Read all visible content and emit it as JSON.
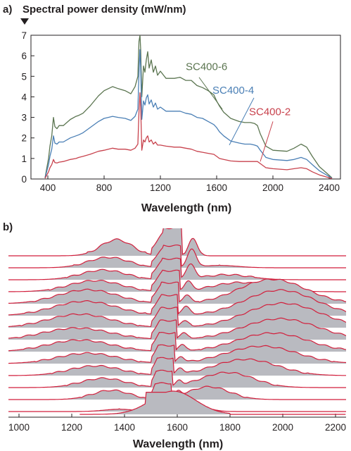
{
  "chart_data": [
    {
      "panel": "a)",
      "type": "line",
      "title": "Spectral power density (mW/nm)",
      "xlabel": "Wavelength (nm)",
      "ylabel": "",
      "xlim": [
        280,
        2480
      ],
      "ylim": [
        0,
        7
      ],
      "xticks": [
        400,
        800,
        1200,
        1600,
        2000,
        2400
      ],
      "yticks": [
        0,
        1,
        2,
        3,
        4,
        5,
        6,
        7
      ],
      "grid": false,
      "series": [
        {
          "name": "SC400-6",
          "color": "#5b7550",
          "label_at": [
            1380,
            5.3
          ],
          "pointer": [
            [
              1475,
              4.95
            ],
            [
              1640,
              3.4
            ]
          ],
          "x": [
            380,
            405,
            415,
            428,
            440,
            450,
            465,
            480,
            510,
            560,
            600,
            620,
            650,
            700,
            760,
            800,
            830,
            860,
            900,
            950,
            990,
            1020,
            1040,
            1048,
            1055,
            1060,
            1068,
            1080,
            1090,
            1100,
            1110,
            1120,
            1135,
            1150,
            1165,
            1180,
            1200,
            1240,
            1300,
            1340,
            1380,
            1420,
            1460,
            1500,
            1540,
            1580,
            1600,
            1620,
            1650,
            1700,
            1760,
            1800,
            1840,
            1870,
            1890,
            1910,
            1950,
            2000,
            2100,
            2150,
            2200,
            2240,
            2280,
            2330,
            2380,
            2420
          ],
          "y": [
            0.05,
            1.0,
            1.6,
            2.1,
            3.0,
            2.55,
            2.45,
            2.6,
            2.6,
            2.9,
            3.05,
            3.1,
            3.2,
            3.55,
            4.05,
            4.3,
            4.4,
            4.5,
            4.4,
            4.3,
            4.15,
            4.5,
            5.0,
            6.7,
            7.0,
            6.3,
            4.0,
            5.5,
            5.2,
            5.8,
            6.2,
            5.4,
            5.8,
            5.2,
            5.5,
            5.05,
            5.25,
            4.9,
            4.9,
            4.95,
            4.8,
            4.8,
            4.55,
            4.45,
            4.3,
            4.1,
            3.8,
            3.55,
            3.25,
            2.95,
            2.8,
            2.75,
            2.75,
            2.7,
            2.6,
            2.2,
            1.6,
            1.4,
            1.35,
            1.5,
            1.7,
            1.55,
            1.1,
            0.6,
            0.3,
            0.05
          ]
        },
        {
          "name": "SC400-4",
          "color": "#4a7fb5",
          "label_at": [
            1570,
            4.15
          ],
          "pointer": [
            [
              1865,
              3.95
            ],
            [
              1690,
              1.65
            ]
          ],
          "x": [
            380,
            405,
            415,
            428,
            440,
            450,
            465,
            480,
            510,
            560,
            600,
            620,
            650,
            700,
            760,
            800,
            830,
            860,
            900,
            950,
            990,
            1020,
            1040,
            1048,
            1055,
            1060,
            1068,
            1080,
            1090,
            1100,
            1110,
            1120,
            1135,
            1150,
            1165,
            1180,
            1200,
            1240,
            1300,
            1340,
            1380,
            1420,
            1460,
            1500,
            1540,
            1580,
            1600,
            1620,
            1650,
            1700,
            1760,
            1800,
            1840,
            1870,
            1890,
            1910,
            1950,
            2000,
            2100,
            2150,
            2200,
            2240,
            2280,
            2330,
            2380,
            2420
          ],
          "y": [
            0.05,
            0.7,
            1.1,
            1.45,
            2.1,
            1.75,
            1.7,
            1.8,
            1.8,
            2.0,
            2.1,
            2.15,
            2.25,
            2.5,
            2.8,
            2.95,
            3.0,
            3.05,
            3.0,
            2.95,
            2.85,
            3.05,
            3.4,
            5.2,
            6.3,
            5.4,
            2.9,
            3.8,
            3.6,
            3.95,
            4.1,
            3.65,
            3.85,
            3.5,
            3.7,
            3.4,
            3.5,
            3.3,
            3.3,
            3.3,
            3.2,
            3.15,
            3.0,
            2.95,
            2.8,
            2.65,
            2.5,
            2.3,
            2.1,
            1.85,
            1.75,
            1.7,
            1.7,
            1.65,
            1.6,
            1.4,
            1.05,
            0.95,
            0.9,
            0.95,
            1.05,
            0.95,
            0.7,
            0.4,
            0.2,
            0.03
          ]
        },
        {
          "name": "SC400-2",
          "color": "#c8424d",
          "label_at": [
            1830,
            3.1
          ],
          "pointer": [
            [
              2000,
              2.8
            ],
            [
              1910,
              0.85
            ]
          ],
          "x": [
            380,
            405,
            415,
            428,
            440,
            450,
            465,
            480,
            510,
            560,
            600,
            620,
            650,
            700,
            760,
            800,
            830,
            860,
            900,
            950,
            990,
            1020,
            1040,
            1048,
            1055,
            1060,
            1068,
            1080,
            1090,
            1100,
            1110,
            1120,
            1135,
            1150,
            1165,
            1180,
            1200,
            1240,
            1300,
            1340,
            1380,
            1420,
            1460,
            1500,
            1540,
            1580,
            1600,
            1620,
            1650,
            1700,
            1760,
            1800,
            1840,
            1870,
            1890,
            1910,
            1950,
            2000,
            2100,
            2150,
            2200,
            2240,
            2280,
            2330,
            2380,
            2420
          ],
          "y": [
            0.03,
            0.35,
            0.55,
            0.7,
            0.95,
            0.8,
            0.78,
            0.82,
            0.85,
            0.95,
            1.0,
            1.05,
            1.1,
            1.2,
            1.35,
            1.4,
            1.45,
            1.5,
            1.45,
            1.45,
            1.4,
            1.5,
            1.7,
            3.3,
            4.2,
            3.5,
            1.4,
            1.9,
            1.8,
            2.0,
            2.1,
            1.8,
            1.9,
            1.7,
            1.8,
            1.65,
            1.65,
            1.6,
            1.55,
            1.55,
            1.5,
            1.45,
            1.35,
            1.3,
            1.25,
            1.2,
            1.1,
            1.0,
            0.95,
            0.88,
            0.85,
            0.85,
            0.85,
            0.85,
            0.85,
            0.75,
            0.55,
            0.5,
            0.45,
            0.5,
            0.55,
            0.5,
            0.35,
            0.2,
            0.1,
            0.02
          ]
        }
      ]
    },
    {
      "panel": "b)",
      "type": "area",
      "title": "",
      "xlabel": "Wavelength (nm)",
      "ylabel": "",
      "xlim": [
        960,
        2240
      ],
      "xticks": [
        1000,
        1200,
        1400,
        1600,
        1800,
        2000,
        2200
      ],
      "grid": false,
      "fill_color": "#b9bac0",
      "line_color": "#d21f3c",
      "traces": [
        {
          "left_bump": [
            1370,
            85,
            0.58
          ],
          "right_bump": [
            1740,
            90,
            0.0
          ],
          "band": [
            1547,
            1617,
            1.0
          ],
          "ridge": [
            1660,
            25,
            0.6
          ]
        },
        {
          "left_bump": [
            1340,
            110,
            0.45
          ],
          "right_bump": [
            1760,
            100,
            0.1
          ],
          "band": [
            1545,
            1614,
            0.95
          ],
          "ridge": [
            1655,
            25,
            0.75
          ]
        },
        {
          "left_bump": [
            1320,
            120,
            0.42
          ],
          "right_bump": [
            1790,
            120,
            0.22
          ],
          "band": [
            1543,
            1612,
            0.9
          ],
          "ridge": [
            1650,
            25,
            0.6
          ]
        },
        {
          "left_bump": [
            1290,
            140,
            0.48
          ],
          "right_bump": [
            1840,
            150,
            0.4
          ],
          "band": [
            1541,
            1610,
            0.9
          ],
          "ridge": [
            1640,
            20,
            0.4
          ]
        },
        {
          "left_bump": [
            1260,
            160,
            0.6
          ],
          "right_bump": [
            1960,
            180,
            1.05
          ],
          "band": [
            1540,
            1606,
            0.9
          ],
          "ridge": [
            1635,
            20,
            0.35
          ]
        },
        {
          "left_bump": [
            1250,
            170,
            0.62
          ],
          "right_bump": [
            1990,
            190,
            1.1
          ],
          "band": [
            1538,
            1603,
            0.88
          ],
          "ridge": [
            1632,
            20,
            0.4
          ]
        },
        {
          "left_bump": [
            1230,
            170,
            0.58
          ],
          "right_bump": [
            2000,
            200,
            1.05
          ],
          "band": [
            1537,
            1600,
            0.85
          ],
          "ridge": [
            1628,
            20,
            0.3
          ]
        },
        {
          "left_bump": [
            1220,
            180,
            0.5
          ],
          "right_bump": [
            1990,
            200,
            0.9
          ],
          "band": [
            1535,
            1597,
            0.82
          ],
          "ridge": [
            1625,
            18,
            0.3
          ]
        },
        {
          "left_bump": [
            1230,
            170,
            0.5
          ],
          "right_bump": [
            1960,
            190,
            0.8
          ],
          "band": [
            1533,
            1593,
            0.8
          ],
          "ridge": [
            1620,
            18,
            0.3
          ]
        },
        {
          "left_bump": [
            1260,
            160,
            0.45
          ],
          "right_bump": [
            1920,
            190,
            0.75
          ],
          "band": [
            1530,
            1590,
            0.78
          ],
          "ridge": [
            1615,
            18,
            0.25
          ]
        },
        {
          "left_bump": [
            1290,
            140,
            0.42
          ],
          "right_bump": [
            1860,
            170,
            0.7
          ],
          "band": [
            1527,
            1586,
            0.75
          ],
          "ridge": [
            1612,
            18,
            0.25
          ]
        },
        {
          "left_bump": [
            1320,
            120,
            0.4
          ],
          "right_bump": [
            1790,
            140,
            0.65
          ],
          "band": [
            1524,
            1583,
            0.72
          ],
          "ridge": [
            1608,
            16,
            0.2
          ]
        },
        {
          "left_bump": [
            1350,
            100,
            0.4
          ],
          "right_bump": [
            1720,
            110,
            0.55
          ],
          "band": [
            1520,
            1578,
            0.7
          ],
          "ridge": [
            1604,
            16,
            0.2
          ]
        },
        {
          "left_bump": [
            1380,
            80,
            0.1
          ],
          "right_bump": [
            1660,
            70,
            0.3
          ],
          "band": [
            1515,
            1580,
            0.7
          ],
          "ridge": [
            1600,
            16,
            0.1
          ]
        }
      ]
    }
  ]
}
